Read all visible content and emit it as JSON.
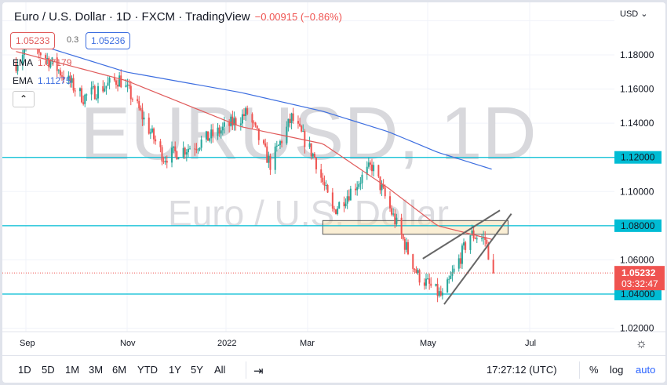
{
  "header": {
    "title": "Euro / U.S. Dollar · 1D · FXCM · TradingView",
    "change": "−0.00915 (−0.86%)"
  },
  "bid": "1.05233",
  "spread": "0.3",
  "ask": "1.05236",
  "indicators": [
    {
      "name": "EMA",
      "value": "1.07179",
      "color": "#e05a5a"
    },
    {
      "name": "EMA",
      "value": "1.11275",
      "color": "#3d6ee0"
    }
  ],
  "watermark": {
    "symbol": "EURUSD, 1D",
    "description": "Euro / U.S. Dollar"
  },
  "currency": "USD",
  "price_axis": [
    "1.18000",
    "1.16000",
    "1.14000",
    "1.10000",
    "1.06000",
    "1.02000"
  ],
  "levels": [
    {
      "price": 1.12,
      "label": "1.12000"
    },
    {
      "price": 1.08,
      "label": "1.08000"
    },
    {
      "price": 1.04,
      "label": "1.04000"
    }
  ],
  "last": {
    "price": "1.05232",
    "countdown": "03:32:47"
  },
  "time_axis": [
    "Sep",
    "Nov",
    "2022",
    "Mar",
    "May",
    "Jul"
  ],
  "ranges": [
    "1D",
    "5D",
    "1M",
    "3M",
    "6M",
    "YTD",
    "1Y",
    "5Y",
    "All"
  ],
  "clock": "17:27:12 (UTC)",
  "scale_buttons": [
    "%",
    "log",
    "auto"
  ],
  "colors": {
    "up": "#26a69a",
    "down": "#ef5350",
    "level": "#00bcd4",
    "ema_fast": "#e05a5a",
    "ema_slow": "#3d6ee0",
    "accent": "#2962ff"
  },
  "chart_data": {
    "type": "candlestick",
    "closes": [
      [
        "2021-08-26",
        1.175
      ],
      [
        "2021-09-03",
        1.188
      ],
      [
        "2021-09-20",
        1.172
      ],
      [
        "2021-10-06",
        1.155
      ],
      [
        "2021-10-28",
        1.166
      ],
      [
        "2021-11-05",
        1.155
      ],
      [
        "2021-11-24",
        1.12
      ],
      [
        "2021-12-15",
        1.128
      ],
      [
        "2021-12-31",
        1.137
      ],
      [
        "2022-01-14",
        1.146
      ],
      [
        "2022-01-28",
        1.116
      ],
      [
        "2022-02-10",
        1.143
      ],
      [
        "2022-02-24",
        1.12
      ],
      [
        "2022-03-07",
        1.088
      ],
      [
        "2022-03-31",
        1.115
      ],
      [
        "2022-04-14",
        1.083
      ],
      [
        "2022-04-28",
        1.051
      ],
      [
        "2022-05-13",
        1.038
      ],
      [
        "2022-05-30",
        1.075
      ],
      [
        "2022-06-08",
        1.072
      ],
      [
        "2022-06-13",
        1.0523
      ]
    ],
    "ema_fast": [
      [
        "2021-08-26",
        1.182
      ],
      [
        "2021-11-01",
        1.165
      ],
      [
        "2022-01-10",
        1.138
      ],
      [
        "2022-03-01",
        1.128
      ],
      [
        "2022-04-10",
        1.102
      ],
      [
        "2022-05-10",
        1.08
      ],
      [
        "2022-06-13",
        1.0718
      ]
    ],
    "ema_slow": [
      [
        "2021-08-26",
        1.19
      ],
      [
        "2021-11-01",
        1.17
      ],
      [
        "2022-01-10",
        1.158
      ],
      [
        "2022-03-01",
        1.147
      ],
      [
        "2022-04-10",
        1.135
      ],
      [
        "2022-05-10",
        1.123
      ],
      [
        "2022-06-13",
        1.1128
      ]
    ],
    "zone": {
      "from": "2022-03-01",
      "to": "2022-06-22",
      "low": 1.075,
      "high": 1.083
    },
    "trendlines": [
      [
        [
          "2022-05-01",
          1.0607
        ],
        [
          "2022-06-17",
          1.089
        ]
      ],
      [
        [
          "2022-05-14",
          1.034
        ],
        [
          "2022-06-24",
          1.087
        ]
      ]
    ]
  }
}
